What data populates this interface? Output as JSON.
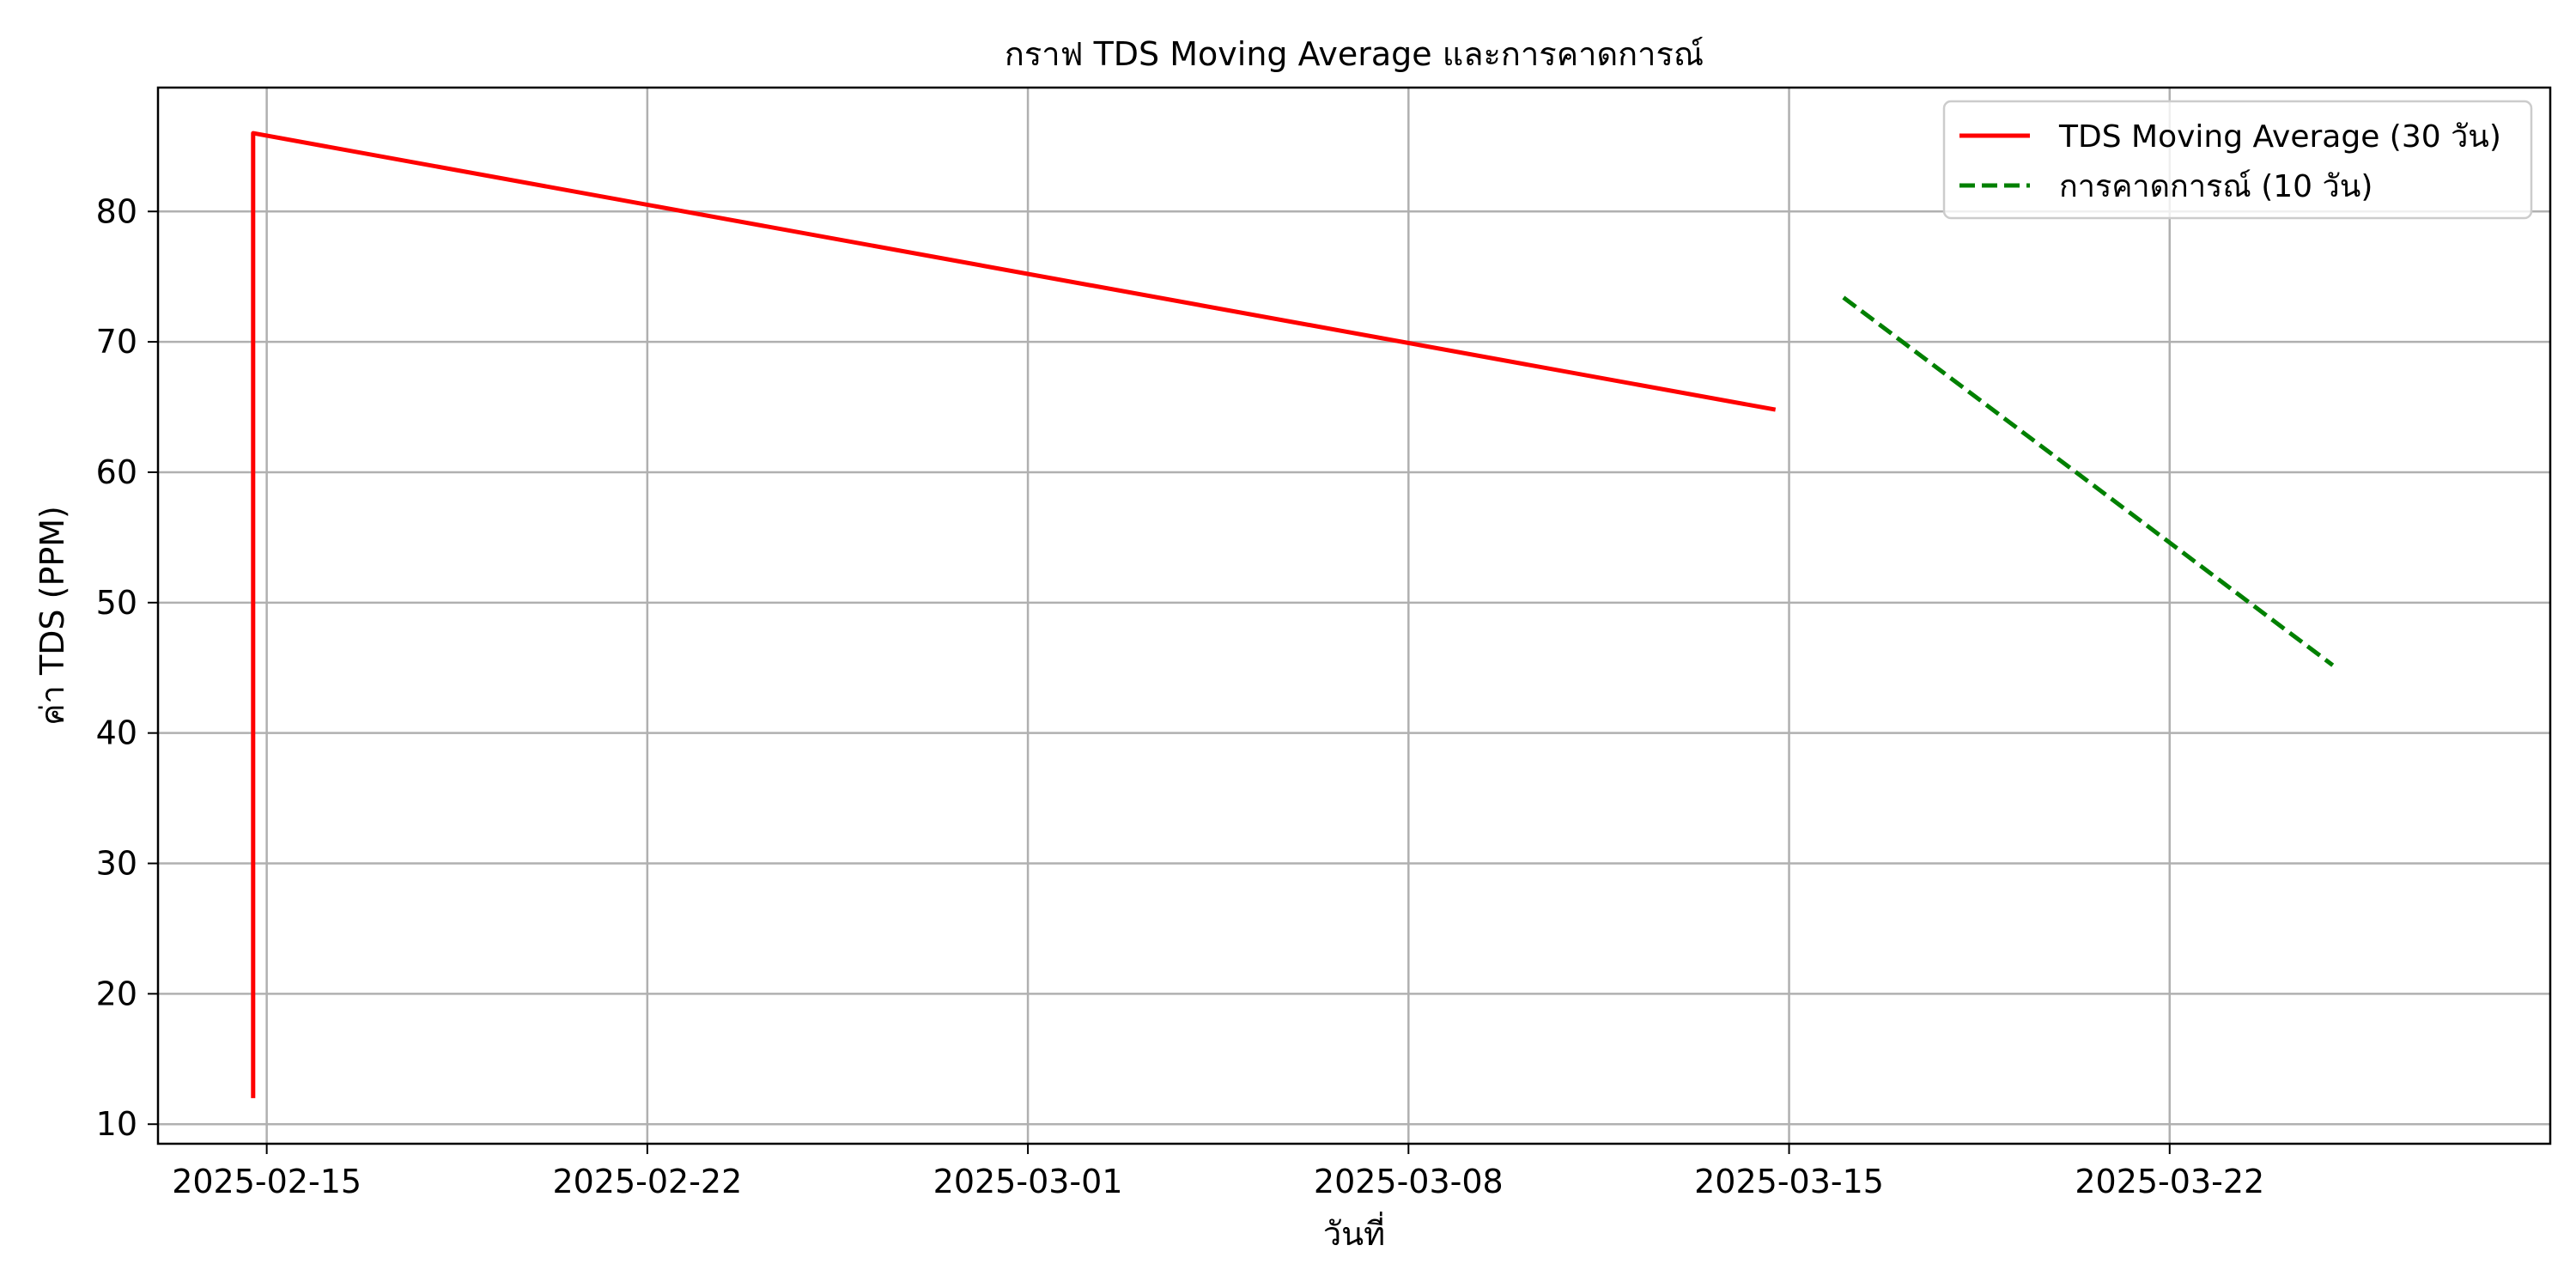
{
  "chart_data": {
    "type": "line",
    "title": "กราฟ TDS Moving Average และการคาดการณ์",
    "xlabel": "วันที่",
    "ylabel": "ค่า TDS (PPM)",
    "x_ticks": [
      "2025-02-15",
      "2025-02-22",
      "2025-03-01",
      "2025-03-08",
      "2025-03-15",
      "2025-03-22"
    ],
    "y_ticks": [
      10,
      20,
      30,
      40,
      50,
      60,
      70,
      80
    ],
    "xlim": [
      "2025-02-13",
      "2025-03-29"
    ],
    "ylim": [
      8.5,
      89.5
    ],
    "grid": true,
    "legend_position": "top-right",
    "series": [
      {
        "name": "TDS Moving Average (30 วัน)",
        "color": "#ff0000",
        "style": "solid",
        "points": [
          {
            "x": "2025-02-14 18:00",
            "y": 12
          },
          {
            "x": "2025-02-14 18:00",
            "y": 86
          },
          {
            "x": "2025-03-14 18:00",
            "y": 64.8
          }
        ]
      },
      {
        "name": "การคาดการณ์ (10 วัน)",
        "color": "#008000",
        "style": "dashed",
        "points": [
          {
            "x": "2025-03-16",
            "y": 73.4
          },
          {
            "x": "2025-03-25",
            "y": 45.2
          }
        ]
      }
    ]
  }
}
